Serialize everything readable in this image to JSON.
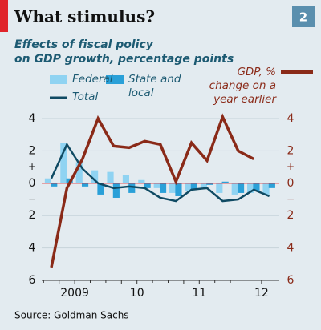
{
  "chart_data": {
    "type": "bar-line",
    "title": "What stimulus?",
    "badge": "2",
    "subtitle": [
      "Effects of fiscal policy",
      "on GDP growth, percentage points"
    ],
    "source": "Source: Goldman Sachs",
    "categories": [
      null,
      "2009",
      null,
      null,
      null,
      "10",
      null,
      null,
      null,
      "11",
      null,
      null,
      null,
      "12",
      null
    ],
    "series": [
      {
        "name": "Federal",
        "kind": "bar",
        "color": "#8fd3f2",
        "values": [
          0.3,
          2.5,
          1.3,
          0.8,
          0.7,
          0.5,
          0.2,
          -0.3,
          -0.6,
          -0.5,
          -0.3,
          -0.6,
          -0.7,
          -0.6,
          -0.7
        ]
      },
      {
        "name": "State and local",
        "kind": "bar",
        "color": "#2aa0d8",
        "values": [
          -0.2,
          0.3,
          -0.2,
          -0.7,
          -0.9,
          -0.6,
          -0.3,
          -0.6,
          -0.8,
          -0.4,
          -0.1,
          0.1,
          -0.6,
          -0.5,
          -0.3
        ]
      },
      {
        "name": "Total",
        "kind": "line",
        "color": "#0f4a63",
        "values": [
          0.3,
          2.4,
          0.9,
          0.0,
          -0.3,
          -0.2,
          -0.3,
          -0.9,
          -1.1,
          -0.4,
          -0.3,
          -1.1,
          -1.0,
          -0.4,
          -0.8
        ]
      },
      {
        "name": "GDP, % change on a year earlier",
        "kind": "line",
        "axis": "y2",
        "color": "#8a2a18",
        "values": [
          -5.2,
          -0.3,
          1.5,
          4.0,
          2.3,
          2.2,
          2.6,
          2.4,
          0.1,
          2.5,
          1.4,
          4.1,
          2.0,
          1.5,
          null
        ]
      }
    ],
    "ylim": [
      -6,
      4
    ],
    "yticks": [
      4,
      2,
      0,
      {
        "value": -2,
        "label": "2"
      },
      {
        "value": -4,
        "label": "4"
      },
      {
        "value": -6,
        "label": "6"
      }
    ],
    "y2lim": [
      -6,
      4
    ],
    "y2ticks": [
      4,
      2,
      0,
      {
        "value": -2,
        "label": "2"
      },
      {
        "value": -4,
        "label": "4"
      },
      {
        "value": -6,
        "label": "6"
      }
    ],
    "sign_labels": [
      "+",
      "−"
    ],
    "zero_line_color": "#e0242a",
    "grid": true
  }
}
